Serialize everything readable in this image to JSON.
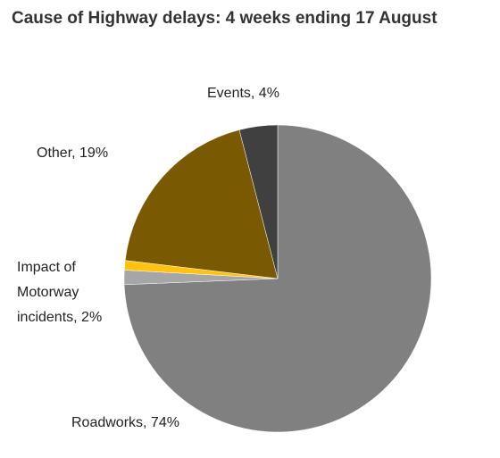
{
  "chart_data": {
    "type": "pie",
    "title": "Cause of Highway delays: 4 weeks ending 17 August",
    "slices": [
      {
        "label": "Roadworks",
        "value": 74,
        "display": "Roadworks, 74%",
        "color": "#808080"
      },
      {
        "label": "Impact of Motorway incidents",
        "value": 1.5,
        "display": "",
        "color": "#a6a6a6"
      },
      {
        "label": "",
        "value": 1.0,
        "display": "",
        "color": "#ffc20e"
      },
      {
        "label": "Other",
        "value": 19,
        "display": "Other, 19%",
        "color": "#7a5a00"
      },
      {
        "label": "Events",
        "value": 4,
        "display": "Events, 4%",
        "color": "#404040"
      }
    ],
    "labels": {
      "events": "Events, 4%",
      "other": "Other, 19%",
      "motorway_line1": "Impact of",
      "motorway_line2": "Motorway",
      "motorway_line3": "incidents, 2%",
      "roadworks": "Roadworks, 74%"
    },
    "start_angle_deg": 0,
    "direction": "clockwise"
  }
}
